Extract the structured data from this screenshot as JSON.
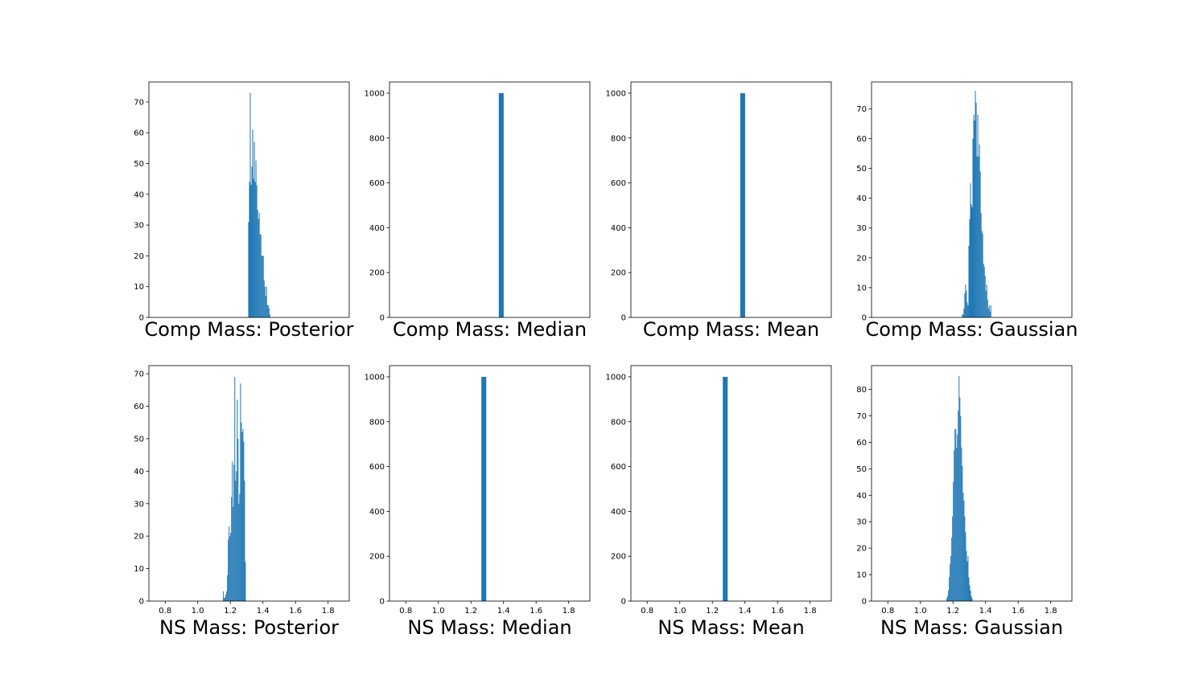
{
  "chart_data": [
    {
      "type": "bar",
      "row": 0,
      "col": 0,
      "xlabel": "Comp Mass: Posterior",
      "title": "",
      "xlim": [
        0.7,
        1.93
      ],
      "ylim": [
        0,
        76.5
      ],
      "xticks": [],
      "yticks": [
        0,
        10,
        20,
        30,
        40,
        50,
        60,
        70
      ],
      "bins": [
        [
          1.31,
          31
        ],
        [
          1.315,
          44
        ],
        [
          1.32,
          73
        ],
        [
          1.325,
          43
        ],
        [
          1.33,
          49
        ],
        [
          1.335,
          61
        ],
        [
          1.34,
          45
        ],
        [
          1.345,
          57
        ],
        [
          1.35,
          44
        ],
        [
          1.355,
          51
        ],
        [
          1.36,
          43
        ],
        [
          1.365,
          35
        ],
        [
          1.37,
          32
        ],
        [
          1.375,
          34
        ],
        [
          1.38,
          27
        ],
        [
          1.385,
          27
        ],
        [
          1.39,
          20
        ],
        [
          1.395,
          20
        ],
        [
          1.4,
          20
        ],
        [
          1.405,
          12
        ],
        [
          1.41,
          10
        ],
        [
          1.415,
          7
        ],
        [
          1.42,
          10
        ],
        [
          1.425,
          4
        ],
        [
          1.43,
          4
        ],
        [
          1.435,
          3
        ],
        [
          1.44,
          1
        ]
      ],
      "bin_width": 0.005
    },
    {
      "type": "bar",
      "row": 0,
      "col": 1,
      "xlabel": "Comp Mass: Median",
      "title": "",
      "xlim": [
        0.7,
        1.93
      ],
      "ylim": [
        0,
        1050
      ],
      "xticks": [],
      "yticks": [
        0,
        200,
        400,
        600,
        800,
        1000
      ],
      "bins": [
        [
          1.371,
          1000
        ]
      ],
      "bin_width": 0.03
    },
    {
      "type": "bar",
      "row": 0,
      "col": 2,
      "xlabel": "Comp Mass: Mean",
      "title": "",
      "xlim": [
        0.7,
        1.93
      ],
      "ylim": [
        0,
        1050
      ],
      "xticks": [],
      "yticks": [
        0,
        200,
        400,
        600,
        800,
        1000
      ],
      "bins": [
        [
          1.371,
          1000
        ]
      ],
      "bin_width": 0.03
    },
    {
      "type": "bar",
      "row": 0,
      "col": 3,
      "xlabel": "Comp Mass: Gaussian",
      "title": "",
      "xlim": [
        0.7,
        1.93
      ],
      "ylim": [
        0,
        79
      ],
      "xticks": [],
      "yticks": [
        0,
        10,
        20,
        30,
        40,
        50,
        60,
        70
      ],
      "bins": [
        [
          1.255,
          1
        ],
        [
          1.26,
          1
        ],
        [
          1.265,
          3
        ],
        [
          1.27,
          8
        ],
        [
          1.275,
          11
        ],
        [
          1.28,
          9
        ],
        [
          1.285,
          5
        ],
        [
          1.29,
          4
        ],
        [
          1.295,
          24
        ],
        [
          1.3,
          33
        ],
        [
          1.305,
          45
        ],
        [
          1.31,
          38
        ],
        [
          1.315,
          37
        ],
        [
          1.32,
          60
        ],
        [
          1.325,
          68
        ],
        [
          1.33,
          66
        ],
        [
          1.335,
          76
        ],
        [
          1.34,
          72
        ],
        [
          1.345,
          54
        ],
        [
          1.35,
          68
        ],
        [
          1.355,
          54
        ],
        [
          1.36,
          58
        ],
        [
          1.365,
          49
        ],
        [
          1.37,
          35
        ],
        [
          1.375,
          29
        ],
        [
          1.38,
          28
        ],
        [
          1.385,
          18
        ],
        [
          1.39,
          17
        ],
        [
          1.395,
          14
        ],
        [
          1.4,
          9
        ],
        [
          1.405,
          11
        ],
        [
          1.41,
          6
        ],
        [
          1.415,
          3
        ],
        [
          1.42,
          4
        ],
        [
          1.425,
          2
        ],
        [
          1.43,
          4
        ]
      ],
      "bin_width": 0.005
    },
    {
      "type": "bar",
      "row": 1,
      "col": 0,
      "xlabel": "NS Mass: Posterior",
      "title": "",
      "xlim": [
        0.7,
        1.93
      ],
      "ylim": [
        0,
        72.5
      ],
      "xticks": [
        0.8,
        1.0,
        1.2,
        1.4,
        1.6,
        1.8
      ],
      "yticks": [
        0,
        10,
        20,
        30,
        40,
        50,
        60,
        70
      ],
      "bins": [
        [
          1.155,
          3
        ],
        [
          1.16,
          1
        ],
        [
          1.165,
          1
        ],
        [
          1.17,
          2
        ],
        [
          1.175,
          3
        ],
        [
          1.18,
          8
        ],
        [
          1.185,
          19
        ],
        [
          1.19,
          23
        ],
        [
          1.195,
          20
        ],
        [
          1.2,
          21
        ],
        [
          1.205,
          32
        ],
        [
          1.21,
          43
        ],
        [
          1.215,
          29
        ],
        [
          1.22,
          42
        ],
        [
          1.225,
          69
        ],
        [
          1.23,
          37
        ],
        [
          1.235,
          40
        ],
        [
          1.24,
          62
        ],
        [
          1.245,
          50
        ],
        [
          1.25,
          30
        ],
        [
          1.255,
          33
        ],
        [
          1.26,
          67
        ],
        [
          1.265,
          55
        ],
        [
          1.27,
          52
        ],
        [
          1.275,
          53
        ],
        [
          1.28,
          49
        ],
        [
          1.285,
          37
        ],
        [
          1.29,
          12
        ]
      ],
      "bin_width": 0.005
    },
    {
      "type": "bar",
      "row": 1,
      "col": 1,
      "xlabel": "NS Mass: Median",
      "title": "",
      "xlim": [
        0.7,
        1.93
      ],
      "ylim": [
        0,
        1050
      ],
      "xticks": [
        0.8,
        1.0,
        1.2,
        1.4,
        1.6,
        1.8
      ],
      "yticks": [
        0,
        200,
        400,
        600,
        800,
        1000
      ],
      "bins": [
        [
          1.264,
          1000
        ]
      ],
      "bin_width": 0.03
    },
    {
      "type": "bar",
      "row": 1,
      "col": 2,
      "xlabel": "NS Mass: Mean",
      "title": "",
      "xlim": [
        0.7,
        1.93
      ],
      "ylim": [
        0,
        1050
      ],
      "xticks": [
        0.8,
        1.0,
        1.2,
        1.4,
        1.6,
        1.8
      ],
      "yticks": [
        0,
        200,
        400,
        600,
        800,
        1000
      ],
      "bins": [
        [
          1.264,
          1000
        ]
      ],
      "bin_width": 0.03
    },
    {
      "type": "bar",
      "row": 1,
      "col": 3,
      "xlabel": "NS Mass: Gaussian",
      "title": "",
      "xlim": [
        0.7,
        1.93
      ],
      "ylim": [
        0,
        89
      ],
      "xticks": [
        0.8,
        1.0,
        1.2,
        1.4,
        1.6,
        1.8
      ],
      "yticks": [
        0,
        10,
        20,
        30,
        40,
        50,
        60,
        70,
        80
      ],
      "bins": [
        [
          1.16,
          1
        ],
        [
          1.165,
          2
        ],
        [
          1.17,
          4
        ],
        [
          1.175,
          9
        ],
        [
          1.18,
          14
        ],
        [
          1.185,
          17
        ],
        [
          1.19,
          24
        ],
        [
          1.195,
          32
        ],
        [
          1.2,
          45
        ],
        [
          1.205,
          57
        ],
        [
          1.21,
          65
        ],
        [
          1.215,
          65
        ],
        [
          1.22,
          58
        ],
        [
          1.225,
          63
        ],
        [
          1.23,
          72
        ],
        [
          1.235,
          85
        ],
        [
          1.24,
          77
        ],
        [
          1.245,
          70
        ],
        [
          1.25,
          58
        ],
        [
          1.255,
          51
        ],
        [
          1.26,
          41
        ],
        [
          1.265,
          38
        ],
        [
          1.27,
          32
        ],
        [
          1.275,
          26
        ],
        [
          1.28,
          19
        ],
        [
          1.285,
          15
        ],
        [
          1.29,
          17
        ],
        [
          1.295,
          9
        ],
        [
          1.3,
          6
        ],
        [
          1.305,
          4
        ],
        [
          1.31,
          2
        ],
        [
          1.315,
          1
        ]
      ],
      "bin_width": 0.005
    }
  ],
  "colors": {
    "bar": "#1f77b4",
    "axes": "#000000",
    "background": "#ffffff"
  }
}
